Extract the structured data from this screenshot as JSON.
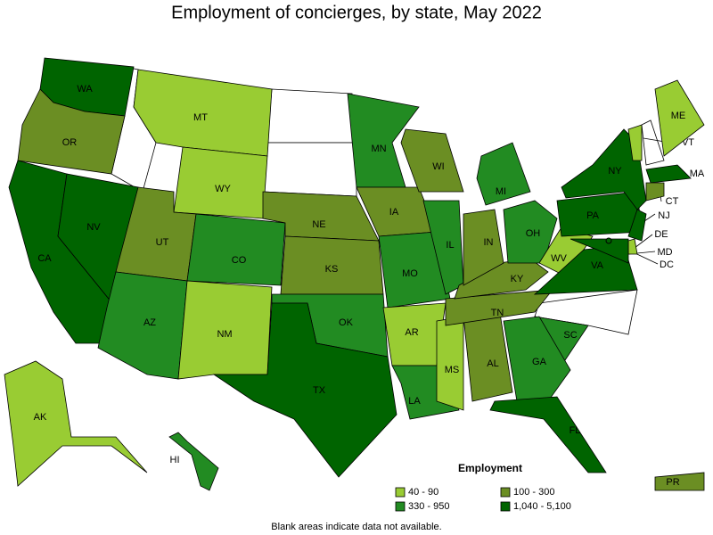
{
  "title": "Employment of concierges, by state, May 2022",
  "legend": {
    "title": "Employment",
    "items": [
      {
        "label": "40 - 90",
        "color": "#99cc33"
      },
      {
        "label": "100 - 300",
        "color": "#6b8e23"
      },
      {
        "label": "330 - 950",
        "color": "#228b22"
      },
      {
        "label": "1,040 - 5,100",
        "color": "#006400"
      }
    ]
  },
  "states": [
    {
      "label": "WA",
      "level": 3
    },
    {
      "label": "OR",
      "level": 1
    },
    {
      "label": "CA",
      "level": 3
    },
    {
      "label": "NV",
      "level": 3
    },
    {
      "label": "MT",
      "level": 0
    },
    {
      "label": "WY",
      "level": 0
    },
    {
      "label": "UT",
      "level": 1
    },
    {
      "label": "CO",
      "level": 2
    },
    {
      "label": "AZ",
      "level": 2
    },
    {
      "label": "NM",
      "level": 0
    },
    {
      "label": "NE",
      "level": 1
    },
    {
      "label": "KS",
      "level": 1
    },
    {
      "label": "OK",
      "level": 2
    },
    {
      "label": "TX",
      "level": 3
    },
    {
      "label": "MN",
      "level": 2
    },
    {
      "label": "IA",
      "level": 1
    },
    {
      "label": "MO",
      "level": 2
    },
    {
      "label": "AR",
      "level": 0
    },
    {
      "label": "LA",
      "level": 2
    },
    {
      "label": "WI",
      "level": 1
    },
    {
      "label": "IL",
      "level": 2
    },
    {
      "label": "MI",
      "level": 2
    },
    {
      "label": "MS",
      "level": 0
    },
    {
      "label": "AL",
      "level": 1
    },
    {
      "label": "TN",
      "level": 1
    },
    {
      "label": "KY",
      "level": 1
    },
    {
      "label": "IN",
      "level": 1
    },
    {
      "label": "OH",
      "level": 2
    },
    {
      "label": "WV",
      "level": 0
    },
    {
      "label": "VA",
      "level": 3
    },
    {
      "label": "SC",
      "level": 2
    },
    {
      "label": "GA",
      "level": 2
    },
    {
      "label": "FL",
      "level": 3
    },
    {
      "label": "PA",
      "level": 3
    },
    {
      "label": "NY",
      "level": 3
    },
    {
      "label": "NJ",
      "level": 3
    },
    {
      "label": "DE",
      "level": 0
    },
    {
      "label": "MD",
      "level": 3
    },
    {
      "label": "VT",
      "level": 0
    },
    {
      "label": "ME",
      "level": 0
    },
    {
      "label": "MA",
      "level": 3
    },
    {
      "label": "CT",
      "level": 1
    },
    {
      "label": "AK",
      "level": 0
    },
    {
      "label": "HI",
      "level": 2
    },
    {
      "label": "PR",
      "level": 1
    },
    {
      "label": "DC",
      "level": 3
    }
  ],
  "footnote": "Blank areas indicate data not available."
}
